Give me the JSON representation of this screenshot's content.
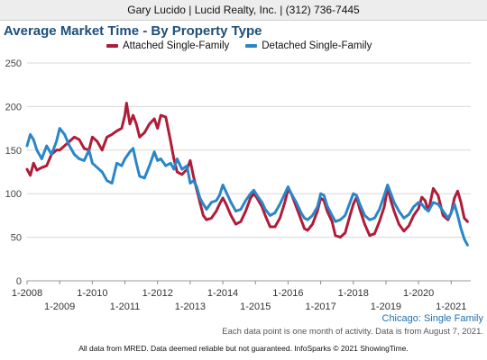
{
  "header": {
    "agent": "Gary Lucido | Lucid Realty, Inc. | (312) 736-7445"
  },
  "colors": {
    "attached": "#b01c38",
    "detached": "#2a86c8",
    "grid": "#d8d8d8",
    "title": "#1f4e79"
  },
  "chart_data": {
    "type": "line",
    "title": "Average Market Time - By Property Type",
    "xlabel": "",
    "ylabel": "",
    "ylim": [
      0,
      250
    ],
    "yticks": [
      0,
      50,
      100,
      150,
      200,
      250
    ],
    "grid": true,
    "legend_position": "top",
    "x_ticks": [
      {
        "label": "1-2008",
        "x": 2008,
        "row": 0
      },
      {
        "label": "1-2009",
        "x": 2009,
        "row": 1
      },
      {
        "label": "1-2010",
        "x": 2010,
        "row": 0
      },
      {
        "label": "1-2011",
        "x": 2011,
        "row": 1
      },
      {
        "label": "1-2012",
        "x": 2012,
        "row": 0
      },
      {
        "label": "1-2013",
        "x": 2013,
        "row": 1
      },
      {
        "label": "1-2014",
        "x": 2014,
        "row": 0
      },
      {
        "label": "1-2015",
        "x": 2015,
        "row": 1
      },
      {
        "label": "1-2016",
        "x": 2016,
        "row": 0
      },
      {
        "label": "1-2017",
        "x": 2017,
        "row": 1
      },
      {
        "label": "1-2018",
        "x": 2018,
        "row": 0
      },
      {
        "label": "1-2019",
        "x": 2019,
        "row": 1
      },
      {
        "label": "1-2020",
        "x": 2020,
        "row": 0
      },
      {
        "label": "1-2021",
        "x": 2021,
        "row": 1
      }
    ],
    "xlim": [
      2008,
      2021.6
    ],
    "series": [
      {
        "name": "Attached Single-Family",
        "color": "#b01c38",
        "points": [
          [
            2008.0,
            128
          ],
          [
            2008.1,
            121
          ],
          [
            2008.2,
            135
          ],
          [
            2008.3,
            127
          ],
          [
            2008.45,
            130
          ],
          [
            2008.6,
            132
          ],
          [
            2008.75,
            145
          ],
          [
            2008.9,
            150
          ],
          [
            2009.0,
            150
          ],
          [
            2009.15,
            155
          ],
          [
            2009.3,
            160
          ],
          [
            2009.45,
            165
          ],
          [
            2009.6,
            162
          ],
          [
            2009.75,
            152
          ],
          [
            2009.9,
            150
          ],
          [
            2010.0,
            165
          ],
          [
            2010.15,
            160
          ],
          [
            2010.3,
            150
          ],
          [
            2010.45,
            165
          ],
          [
            2010.6,
            168
          ],
          [
            2010.75,
            172
          ],
          [
            2010.9,
            175
          ],
          [
            2011.0,
            190
          ],
          [
            2011.05,
            204
          ],
          [
            2011.15,
            180
          ],
          [
            2011.25,
            190
          ],
          [
            2011.35,
            180
          ],
          [
            2011.45,
            165
          ],
          [
            2011.6,
            170
          ],
          [
            2011.75,
            180
          ],
          [
            2011.9,
            186
          ],
          [
            2012.0,
            175
          ],
          [
            2012.1,
            190
          ],
          [
            2012.25,
            188
          ],
          [
            2012.4,
            160
          ],
          [
            2012.5,
            140
          ],
          [
            2012.6,
            125
          ],
          [
            2012.75,
            122
          ],
          [
            2012.9,
            128
          ],
          [
            2013.0,
            138
          ],
          [
            2013.1,
            120
          ],
          [
            2013.2,
            105
          ],
          [
            2013.3,
            90
          ],
          [
            2013.4,
            75
          ],
          [
            2013.5,
            70
          ],
          [
            2013.65,
            72
          ],
          [
            2013.8,
            80
          ],
          [
            2013.9,
            88
          ],
          [
            2014.0,
            95
          ],
          [
            2014.1,
            88
          ],
          [
            2014.25,
            75
          ],
          [
            2014.4,
            65
          ],
          [
            2014.55,
            68
          ],
          [
            2014.7,
            80
          ],
          [
            2014.85,
            95
          ],
          [
            2014.95,
            100
          ],
          [
            2015.05,
            95
          ],
          [
            2015.2,
            85
          ],
          [
            2015.3,
            75
          ],
          [
            2015.45,
            62
          ],
          [
            2015.6,
            62
          ],
          [
            2015.75,
            72
          ],
          [
            2015.9,
            90
          ],
          [
            2016.0,
            105
          ],
          [
            2016.1,
            100
          ],
          [
            2016.25,
            85
          ],
          [
            2016.4,
            70
          ],
          [
            2016.5,
            60
          ],
          [
            2016.6,
            58
          ],
          [
            2016.75,
            65
          ],
          [
            2016.9,
            80
          ],
          [
            2017.0,
            95
          ],
          [
            2017.1,
            92
          ],
          [
            2017.2,
            80
          ],
          [
            2017.35,
            68
          ],
          [
            2017.45,
            52
          ],
          [
            2017.6,
            50
          ],
          [
            2017.75,
            55
          ],
          [
            2017.9,
            75
          ],
          [
            2018.0,
            88
          ],
          [
            2018.1,
            96
          ],
          [
            2018.2,
            82
          ],
          [
            2018.35,
            65
          ],
          [
            2018.5,
            52
          ],
          [
            2018.65,
            54
          ],
          [
            2018.8,
            68
          ],
          [
            2018.95,
            85
          ],
          [
            2019.05,
            107
          ],
          [
            2019.15,
            92
          ],
          [
            2019.25,
            80
          ],
          [
            2019.4,
            65
          ],
          [
            2019.55,
            57
          ],
          [
            2019.7,
            63
          ],
          [
            2019.85,
            75
          ],
          [
            2020.0,
            83
          ],
          [
            2020.1,
            96
          ],
          [
            2020.2,
            92
          ],
          [
            2020.3,
            80
          ],
          [
            2020.45,
            106
          ],
          [
            2020.6,
            98
          ],
          [
            2020.75,
            75
          ],
          [
            2020.9,
            70
          ],
          [
            2021.0,
            78
          ],
          [
            2021.1,
            95
          ],
          [
            2021.2,
            103
          ],
          [
            2021.3,
            90
          ],
          [
            2021.4,
            72
          ],
          [
            2021.5,
            68
          ]
        ]
      },
      {
        "name": "Detached Single-Family",
        "color": "#2a86c8",
        "points": [
          [
            2008.0,
            155
          ],
          [
            2008.1,
            168
          ],
          [
            2008.2,
            162
          ],
          [
            2008.3,
            150
          ],
          [
            2008.45,
            140
          ],
          [
            2008.6,
            155
          ],
          [
            2008.75,
            145
          ],
          [
            2008.9,
            160
          ],
          [
            2009.0,
            175
          ],
          [
            2009.15,
            168
          ],
          [
            2009.3,
            155
          ],
          [
            2009.45,
            145
          ],
          [
            2009.6,
            140
          ],
          [
            2009.75,
            138
          ],
          [
            2009.9,
            150
          ],
          [
            2010.0,
            135
          ],
          [
            2010.15,
            130
          ],
          [
            2010.3,
            125
          ],
          [
            2010.45,
            115
          ],
          [
            2010.6,
            112
          ],
          [
            2010.75,
            135
          ],
          [
            2010.9,
            132
          ],
          [
            2011.0,
            140
          ],
          [
            2011.15,
            148
          ],
          [
            2011.25,
            152
          ],
          [
            2011.35,
            135
          ],
          [
            2011.45,
            120
          ],
          [
            2011.6,
            118
          ],
          [
            2011.75,
            132
          ],
          [
            2011.9,
            148
          ],
          [
            2012.0,
            138
          ],
          [
            2012.1,
            140
          ],
          [
            2012.25,
            132
          ],
          [
            2012.4,
            135
          ],
          [
            2012.5,
            128
          ],
          [
            2012.6,
            140
          ],
          [
            2012.75,
            128
          ],
          [
            2012.9,
            132
          ],
          [
            2013.0,
            112
          ],
          [
            2013.1,
            115
          ],
          [
            2013.2,
            108
          ],
          [
            2013.3,
            95
          ],
          [
            2013.4,
            88
          ],
          [
            2013.5,
            82
          ],
          [
            2013.65,
            90
          ],
          [
            2013.8,
            92
          ],
          [
            2013.9,
            98
          ],
          [
            2014.0,
            110
          ],
          [
            2014.1,
            102
          ],
          [
            2014.25,
            90
          ],
          [
            2014.4,
            80
          ],
          [
            2014.55,
            82
          ],
          [
            2014.7,
            92
          ],
          [
            2014.85,
            100
          ],
          [
            2014.95,
            104
          ],
          [
            2015.05,
            98
          ],
          [
            2015.2,
            90
          ],
          [
            2015.3,
            82
          ],
          [
            2015.45,
            75
          ],
          [
            2015.6,
            78
          ],
          [
            2015.75,
            88
          ],
          [
            2015.9,
            100
          ],
          [
            2016.0,
            108
          ],
          [
            2016.1,
            100
          ],
          [
            2016.25,
            90
          ],
          [
            2016.4,
            78
          ],
          [
            2016.5,
            72
          ],
          [
            2016.6,
            70
          ],
          [
            2016.75,
            75
          ],
          [
            2016.9,
            85
          ],
          [
            2017.0,
            100
          ],
          [
            2017.1,
            98
          ],
          [
            2017.2,
            86
          ],
          [
            2017.35,
            75
          ],
          [
            2017.45,
            68
          ],
          [
            2017.6,
            70
          ],
          [
            2017.75,
            75
          ],
          [
            2017.9,
            90
          ],
          [
            2018.0,
            100
          ],
          [
            2018.1,
            98
          ],
          [
            2018.2,
            88
          ],
          [
            2018.35,
            75
          ],
          [
            2018.5,
            70
          ],
          [
            2018.65,
            72
          ],
          [
            2018.8,
            82
          ],
          [
            2018.95,
            98
          ],
          [
            2019.05,
            110
          ],
          [
            2019.15,
            100
          ],
          [
            2019.25,
            90
          ],
          [
            2019.4,
            80
          ],
          [
            2019.55,
            72
          ],
          [
            2019.7,
            76
          ],
          [
            2019.85,
            85
          ],
          [
            2020.0,
            90
          ],
          [
            2020.1,
            88
          ],
          [
            2020.2,
            83
          ],
          [
            2020.3,
            80
          ],
          [
            2020.45,
            90
          ],
          [
            2020.6,
            88
          ],
          [
            2020.75,
            80
          ],
          [
            2020.9,
            72
          ],
          [
            2021.0,
            78
          ],
          [
            2021.1,
            88
          ],
          [
            2021.2,
            75
          ],
          [
            2021.3,
            60
          ],
          [
            2021.4,
            48
          ],
          [
            2021.5,
            41
          ]
        ]
      }
    ]
  },
  "region_label": "Chicago: Single Family",
  "note": "Each data point is one month of activity. Data is from August 7, 2021.",
  "footer": "All data from MRED. Data deemed reliable but not guaranteed. InfoSparks © 2021 ShowingTime."
}
